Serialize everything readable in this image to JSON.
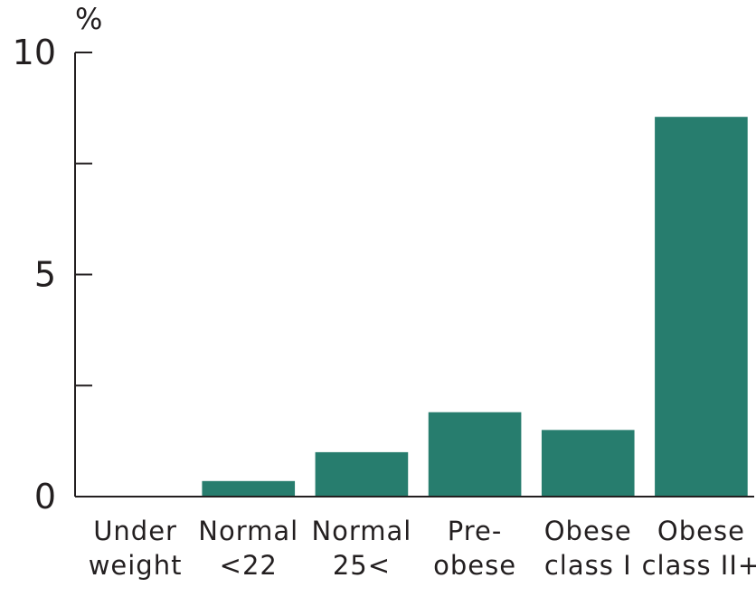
{
  "chart_data": {
    "type": "bar",
    "ylabel": "%",
    "ylim": [
      0,
      10
    ],
    "yticks": [
      0,
      2.5,
      5,
      7.5,
      10
    ],
    "ytick_labels": [
      "0",
      "",
      "5",
      "",
      "10"
    ],
    "categories": [
      [
        "Under",
        "weight"
      ],
      [
        "Normal",
        "<22"
      ],
      [
        "Normal",
        "25<"
      ],
      [
        "Pre-",
        "obese"
      ],
      [
        "Obese",
        "class I"
      ],
      [
        "Obese",
        "class II+"
      ]
    ],
    "values": [
      0,
      0.35,
      1.0,
      1.9,
      1.5,
      8.55
    ],
    "bar_color": "#277d6e",
    "grid": false,
    "legend": "none"
  }
}
